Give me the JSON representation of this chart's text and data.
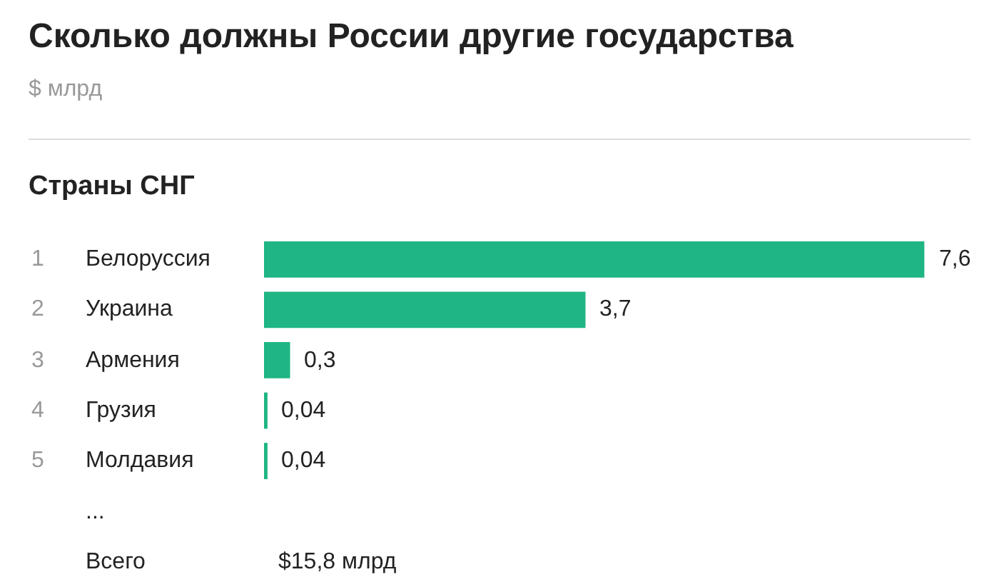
{
  "chart_data": {
    "type": "bar",
    "orientation": "horizontal",
    "title": "Сколько должны России другие государства",
    "subtitle": "$ млрд",
    "ylabel": "Страны СНГ",
    "categories": [
      "Белоруссия",
      "Украина",
      "Армения",
      "Грузия",
      "Молдавия",
      "...",
      "Всего"
    ],
    "values": [
      7.6,
      3.7,
      0.3,
      0.04,
      0.04,
      null,
      null
    ],
    "value_labels": [
      "7,6",
      "3,7",
      "0,3",
      "0,04",
      "0,04",
      null,
      "$15,8 млрд"
    ],
    "color": "#1fb584",
    "annotations": [
      "1",
      "2",
      "3",
      "4",
      "5"
    ]
  }
}
